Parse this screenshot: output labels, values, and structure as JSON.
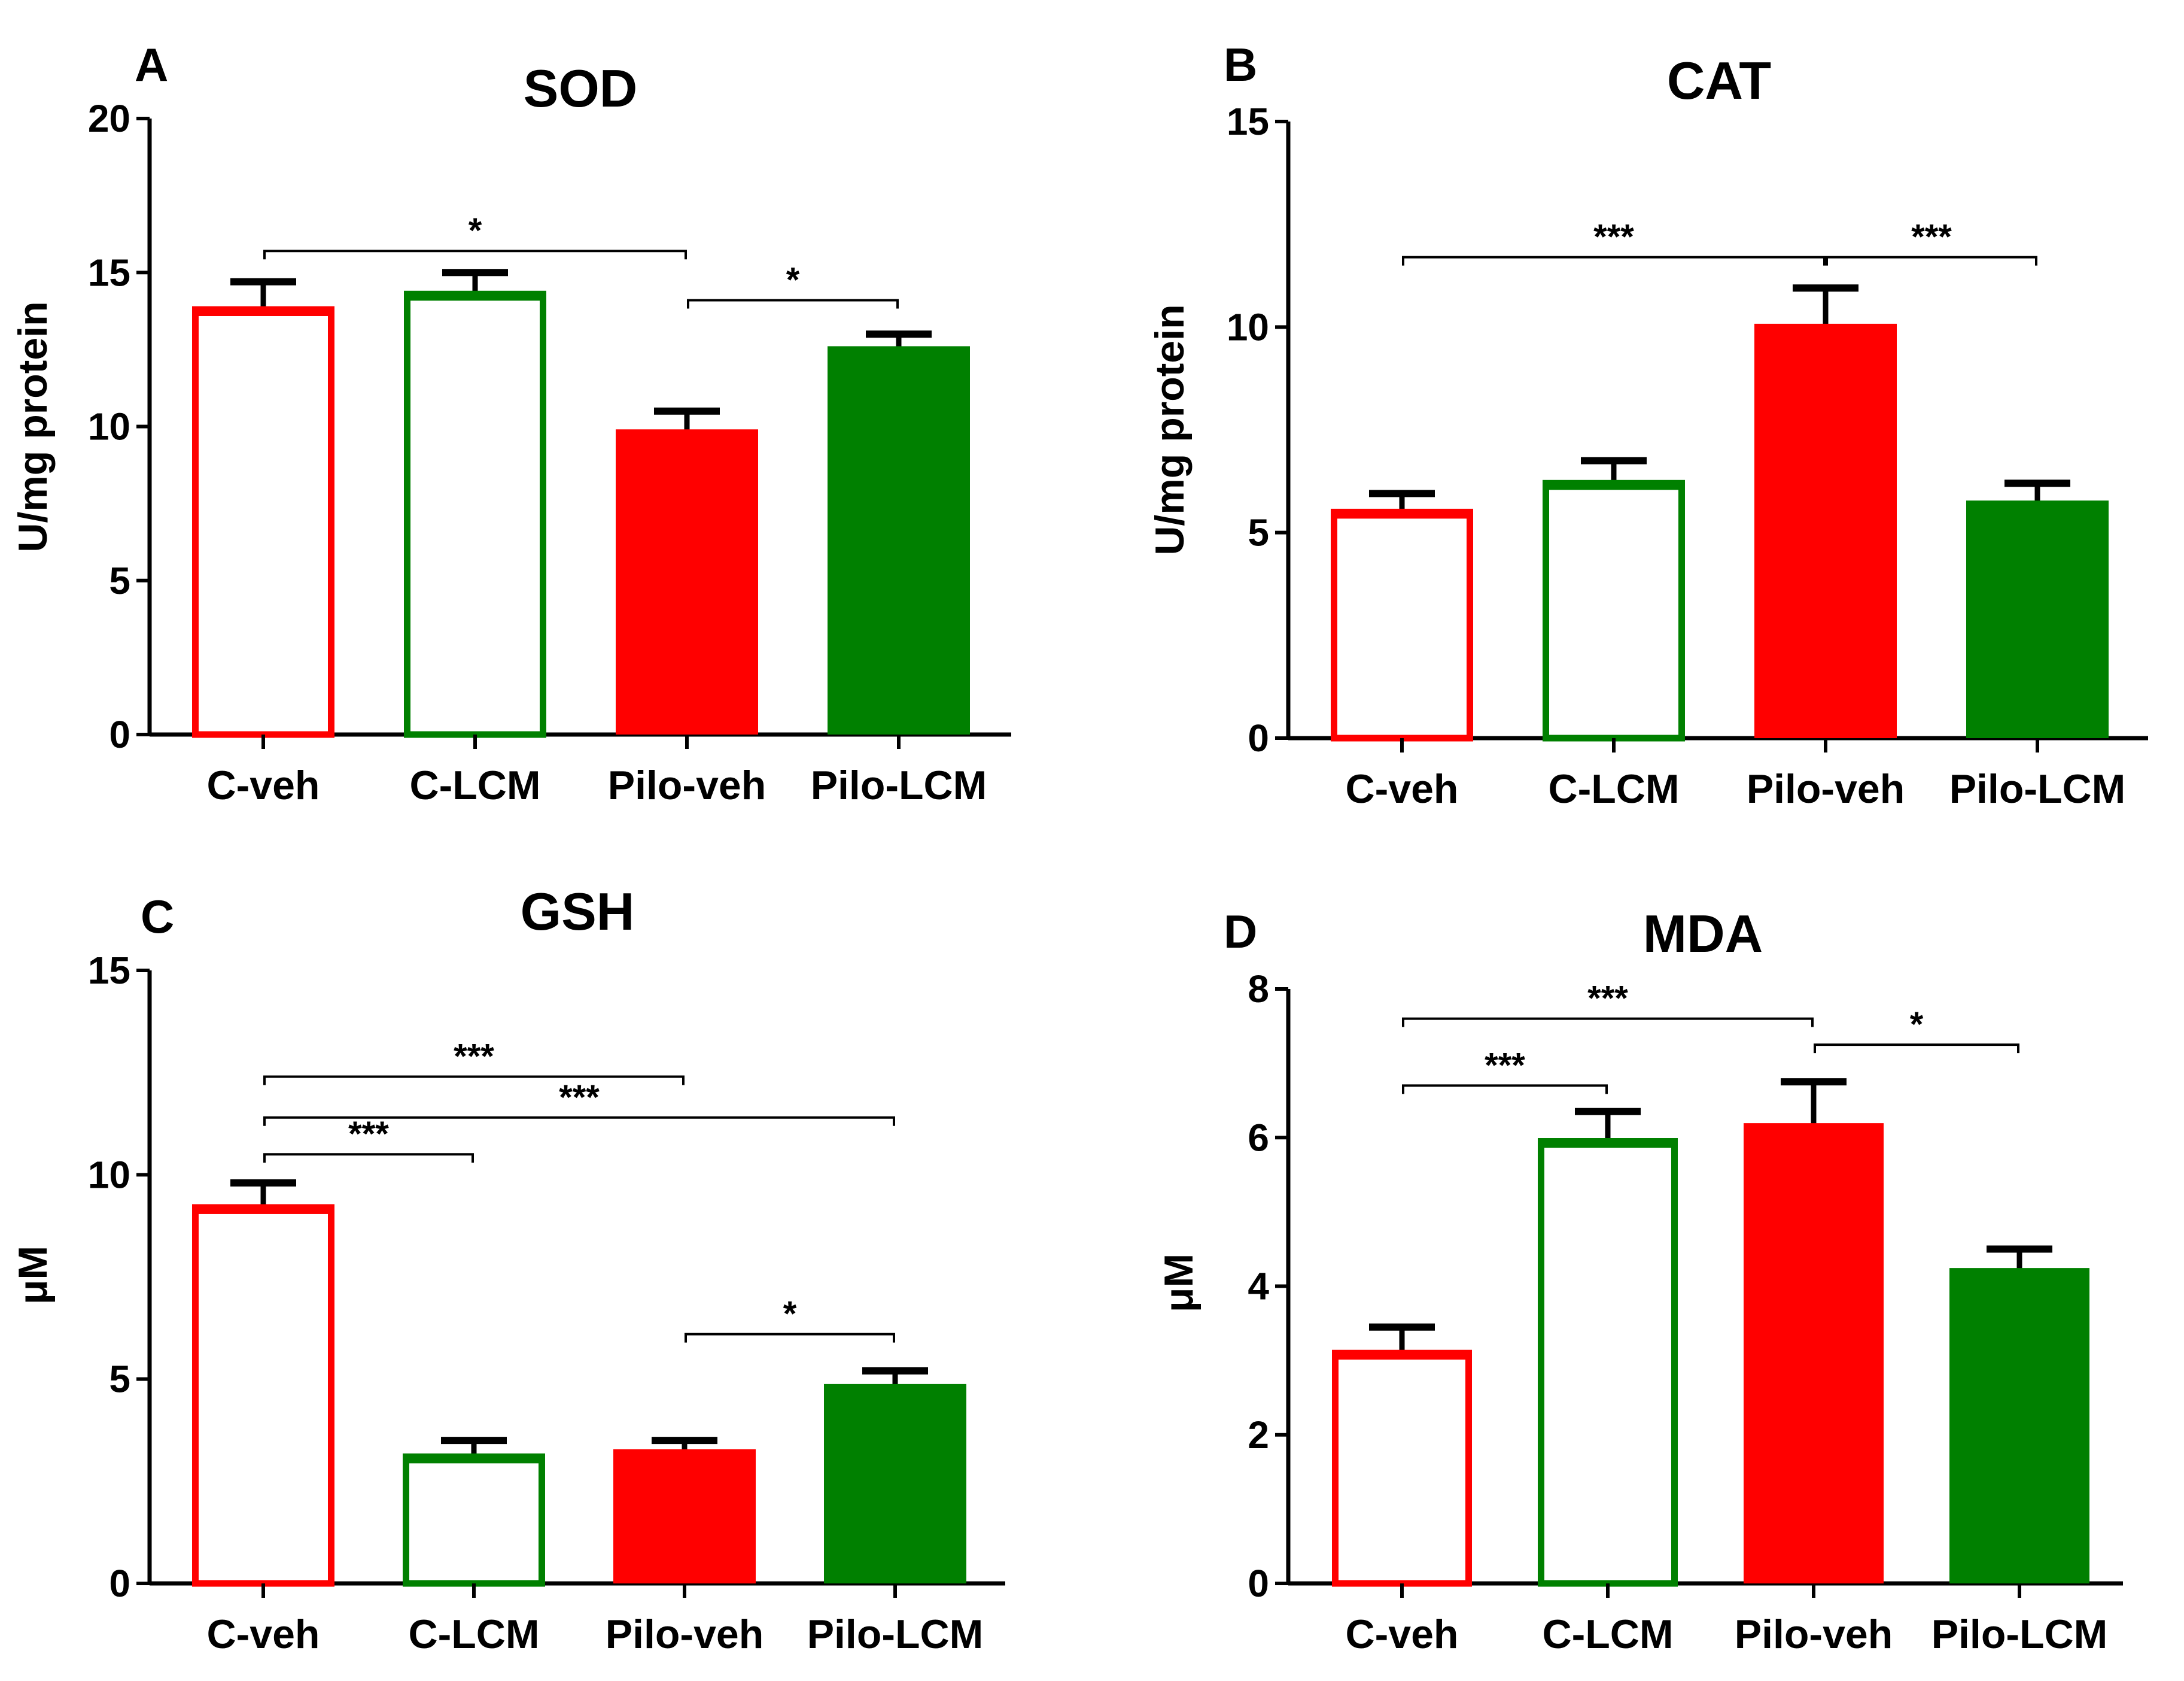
{
  "chart_data": [
    {
      "panel_letter": "A",
      "type": "bar",
      "title": "SOD",
      "ylabel": "U/mg protein",
      "ylim": [
        0,
        20
      ],
      "yticks": [
        "0",
        "5",
        "10",
        "15",
        "20"
      ],
      "categories": [
        "C-veh",
        "C-LCM",
        "Pilo-veh",
        "Pilo-LCM"
      ],
      "values": [
        13.8,
        14.3,
        9.8,
        12.5
      ],
      "errors": [
        0.9,
        0.7,
        0.7,
        0.5
      ],
      "fills": [
        "open",
        "open",
        "filled",
        "filled"
      ],
      "colors": [
        "#ff0000",
        "#008000",
        "#ff0000",
        "#008000"
      ],
      "significance": [
        {
          "from": 0,
          "to": 2,
          "label": "*",
          "y": 15.7
        },
        {
          "from": 2,
          "to": 3,
          "label": "*",
          "y": 14.1
        }
      ]
    },
    {
      "panel_letter": "B",
      "type": "bar",
      "title": "CAT",
      "ylabel": "U/mg protein",
      "ylim": [
        0,
        15
      ],
      "yticks": [
        "0",
        "5",
        "10",
        "15"
      ],
      "categories": [
        "C-veh",
        "C-LCM",
        "Pilo-veh",
        "Pilo-LCM"
      ],
      "values": [
        5.5,
        6.2,
        10.0,
        5.7
      ],
      "errors": [
        0.45,
        0.55,
        0.95,
        0.5
      ],
      "fills": [
        "open",
        "open",
        "filled",
        "filled"
      ],
      "colors": [
        "#ff0000",
        "#008000",
        "#ff0000",
        "#008000"
      ],
      "significance": [
        {
          "from": 0,
          "to": 2,
          "label": "***",
          "y": 11.7
        },
        {
          "from": 2,
          "to": 3,
          "label": "***",
          "y": 11.7
        }
      ]
    },
    {
      "panel_letter": "C",
      "type": "bar",
      "title": "GSH",
      "ylabel": "μM",
      "ylim": [
        0,
        15
      ],
      "yticks": [
        "0",
        "5",
        "10",
        "15"
      ],
      "categories": [
        "C-veh",
        "C-LCM",
        "Pilo-veh",
        "Pilo-LCM"
      ],
      "values": [
        9.2,
        3.1,
        3.2,
        4.8
      ],
      "errors": [
        0.6,
        0.4,
        0.3,
        0.4
      ],
      "fills": [
        "open",
        "open",
        "filled",
        "filled"
      ],
      "colors": [
        "#ff0000",
        "#008000",
        "#ff0000",
        "#008000"
      ],
      "significance": [
        {
          "from": 0,
          "to": 2,
          "label": "***",
          "y": 12.4
        },
        {
          "from": 0,
          "to": 3,
          "label": "***",
          "y": 11.4
        },
        {
          "from": 0,
          "to": 1,
          "label": "***",
          "y": 10.5
        },
        {
          "from": 2,
          "to": 3,
          "label": "*",
          "y": 6.1
        }
      ]
    },
    {
      "panel_letter": "D",
      "type": "bar",
      "title": "MDA",
      "ylabel": "μM",
      "ylim": [
        0,
        8
      ],
      "yticks": [
        "0",
        "2",
        "4",
        "6",
        "8"
      ],
      "categories": [
        "C-veh",
        "C-LCM",
        "Pilo-veh",
        "Pilo-LCM"
      ],
      "values": [
        3.1,
        5.95,
        6.15,
        4.2
      ],
      "errors": [
        0.35,
        0.4,
        0.6,
        0.3
      ],
      "fills": [
        "open",
        "open",
        "filled",
        "filled"
      ],
      "colors": [
        "#ff0000",
        "#008000",
        "#ff0000",
        "#008000"
      ],
      "significance": [
        {
          "from": 0,
          "to": 2,
          "label": "***",
          "y": 7.6
        },
        {
          "from": 0,
          "to": 1,
          "label": "***",
          "y": 6.7
        },
        {
          "from": 2,
          "to": 3,
          "label": "*",
          "y": 7.25
        }
      ]
    }
  ]
}
